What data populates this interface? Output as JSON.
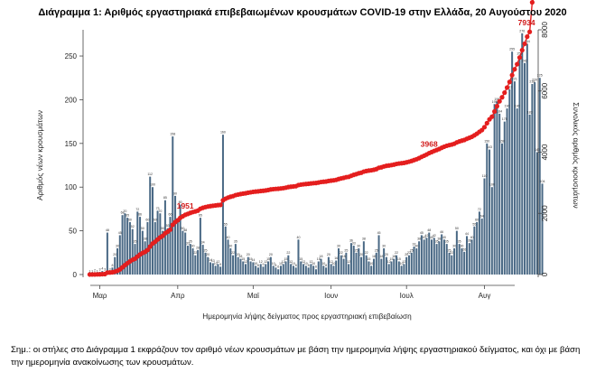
{
  "chart_data": {
    "type": "bar+line",
    "title": "Διάγραμμα 1: Αριθμός εργαστηριακά επιβεβαιωμένων κρουσμάτων COVID-19 στην Ελλάδα, 20 Αυγούστου 2020",
    "xlabel": "Ημερομηνία λήψης δείγματος προς εργαστηριακή επιβεβαίωση",
    "ylabel_left": "Αριθμός νέων κρουσμάτων",
    "ylabel_right": "Συνολικός αριθμός κρουσμάτων",
    "ylim_left": [
      0,
      280
    ],
    "yticks_left": [
      0,
      50,
      100,
      150,
      200,
      250
    ],
    "ylim_right": [
      0,
      8000
    ],
    "yticks_right": [
      0,
      2000,
      4000,
      6000,
      8000
    ],
    "x_start": "2020-02-26",
    "x_end": "2020-08-19",
    "x_ticks": [
      {
        "date": "2020-03-01",
        "label": "Μαρ"
      },
      {
        "date": "2020-04-01",
        "label": "Απρ"
      },
      {
        "date": "2020-05-01",
        "label": "Μαϊ"
      },
      {
        "date": "2020-06-01",
        "label": "Ιουν"
      },
      {
        "date": "2020-07-01",
        "label": "Ιουλ"
      },
      {
        "date": "2020-08-01",
        "label": "Αυγ"
      }
    ],
    "series": [
      {
        "name": "Νέα κρούσματα",
        "kind": "bar",
        "axis": "left",
        "color": "#4a6985",
        "values": [
          1,
          1,
          2,
          1,
          3,
          4,
          3,
          48,
          3,
          8,
          20,
          30,
          45,
          68,
          70,
          65,
          60,
          52,
          35,
          72,
          66,
          50,
          38,
          60,
          112,
          100,
          60,
          73,
          70,
          50,
          85,
          53,
          66,
          158,
          90,
          60,
          80,
          50,
          48,
          33,
          35,
          30,
          22,
          28,
          65,
          34,
          25,
          20,
          14,
          13,
          10,
          12,
          9,
          160,
          55,
          40,
          30,
          22,
          35,
          20,
          18,
          15,
          12,
          20,
          15,
          14,
          10,
          8,
          12,
          9,
          12,
          15,
          20,
          10,
          8,
          6,
          10,
          12,
          15,
          22,
          12,
          10,
          8,
          40,
          15,
          12,
          10,
          8,
          12,
          10,
          6,
          15,
          18,
          10,
          8,
          20,
          12,
          10,
          16,
          30,
          22,
          18,
          25,
          12,
          36,
          33,
          25,
          30,
          20,
          38,
          22,
          15,
          10,
          18,
          25,
          45,
          18,
          30,
          20,
          12,
          15,
          18,
          22,
          15,
          10,
          12,
          20,
          22,
          25,
          32,
          30,
          38,
          45,
          40,
          42,
          48,
          40,
          42,
          35,
          38,
          46,
          40,
          35,
          25,
          22,
          30,
          50,
          35,
          30,
          26,
          44,
          36,
          40,
          55,
          60,
          72,
          64,
          110,
          150,
          143,
          100,
          195,
          198,
          184,
          150,
          175,
          190,
          212,
          255,
          221,
          190,
          250,
          276,
          242,
          264,
          183,
          218,
          220,
          140,
          225,
          104
        ]
      },
      {
        "name": "Συνολικά κρούσματα",
        "kind": "line",
        "axis": "right",
        "color": "#e41e1e"
      }
    ],
    "annotations": [
      {
        "date": "2020-04-04",
        "text": "1951"
      },
      {
        "date": "2020-07-10",
        "text": "3968"
      },
      {
        "date": "2020-08-19",
        "text": "7934"
      }
    ],
    "cumulative_anchors": [
      {
        "date": "2020-04-04",
        "value": 1951
      },
      {
        "date": "2020-07-10",
        "value": 3968
      },
      {
        "date": "2020-08-19",
        "value": 7934
      }
    ]
  },
  "note": "Σημ.: οι στήλες στο Διάγραμμα 1 εκφράζουν τον αριθμό νέων κρουσμάτων με βάση την ημερομηνία λήψης εργαστηριακού δείγματος, και όχι με βάση την ημερομηνία ανακοίνωσης των κρουσμάτων."
}
